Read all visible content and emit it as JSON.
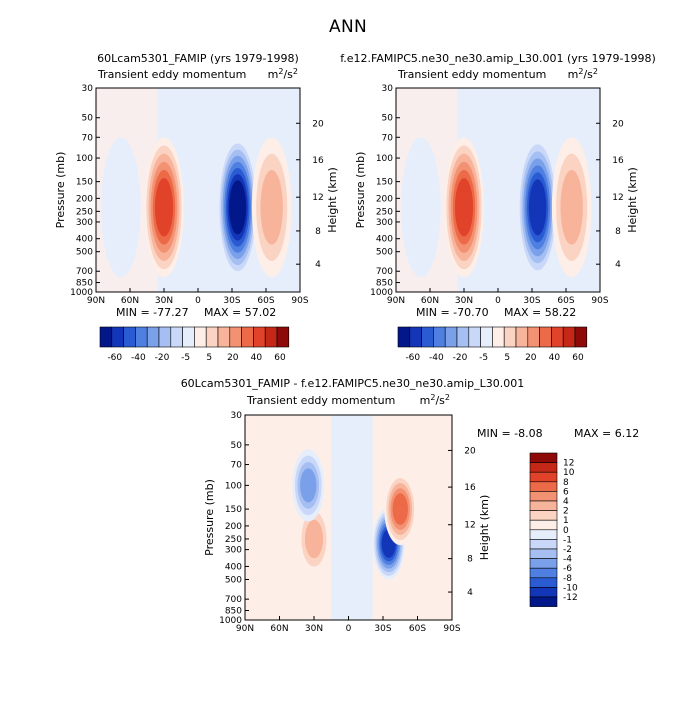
{
  "page_title": "ANN",
  "chart_data": [
    {
      "type": "heatmap",
      "title": "60Lcam5301_FAMIP (yrs 1979-1998)",
      "subtitle": "Transient eddy momentum",
      "units": "m2/s2",
      "xlabel": "",
      "ylabel": "Pressure (mb)",
      "ylabel_right": "Height (km)",
      "x_ticks": [
        "90N",
        "60N",
        "30N",
        "0",
        "30S",
        "60S",
        "90S"
      ],
      "y_ticks": [
        "30",
        "50",
        "70",
        "100",
        "150",
        "200",
        "250",
        "300",
        "400",
        "500",
        "700",
        "850",
        "1000"
      ],
      "y_right_ticks": [
        "20",
        "16",
        "12",
        "8",
        "4"
      ],
      "y_scale": "log",
      "min_label": "MIN = -77.27",
      "max_label": "MAX = 57.02",
      "colorbar": [
        "-60",
        "-40",
        "-20",
        "-5",
        "5",
        "20",
        "40",
        "60"
      ],
      "features": [
        {
          "lat": 30,
          "p": 250,
          "value": 57
        },
        {
          "lat": -35,
          "p": 250,
          "value": -77
        },
        {
          "lat": -65,
          "p": 250,
          "value": 25
        },
        {
          "lat": 68,
          "p": 250,
          "value": -10
        }
      ]
    },
    {
      "type": "heatmap",
      "title": "f.e12.FAMIPC5.ne30_ne30.amip_L30.001 (yrs 1979-1998)",
      "subtitle": "Transient eddy momentum",
      "units": "m2/s2",
      "xlabel": "",
      "ylabel": "Pressure (mb)",
      "ylabel_right": "Height (km)",
      "x_ticks": [
        "90N",
        "60N",
        "30N",
        "0",
        "30S",
        "60S",
        "90S"
      ],
      "y_ticks": [
        "30",
        "50",
        "70",
        "100",
        "150",
        "200",
        "250",
        "300",
        "400",
        "500",
        "700",
        "850",
        "1000"
      ],
      "y_right_ticks": [
        "20",
        "16",
        "12",
        "8",
        "4"
      ],
      "y_scale": "log",
      "min_label": "MIN = -70.70",
      "max_label": "MAX = 58.22",
      "colorbar": [
        "-60",
        "-40",
        "-20",
        "-5",
        "5",
        "20",
        "40",
        "60"
      ],
      "features": [
        {
          "lat": 30,
          "p": 250,
          "value": 58
        },
        {
          "lat": -35,
          "p": 250,
          "value": -71
        },
        {
          "lat": -65,
          "p": 250,
          "value": 28
        },
        {
          "lat": 68,
          "p": 250,
          "value": -12
        }
      ]
    },
    {
      "type": "heatmap",
      "title": "60Lcam5301_FAMIP - f.e12.FAMIPC5.ne30_ne30.amip_L30.001",
      "subtitle": "Transient eddy momentum",
      "units": "m2/s2",
      "xlabel": "",
      "ylabel": "Pressure (mb)",
      "ylabel_right": "Height (km)",
      "x_ticks": [
        "90N",
        "60N",
        "30N",
        "0",
        "30S",
        "60S",
        "90S"
      ],
      "y_ticks": [
        "30",
        "50",
        "70",
        "100",
        "150",
        "200",
        "250",
        "300",
        "400",
        "500",
        "700",
        "850",
        "1000"
      ],
      "y_right_ticks": [
        "20",
        "16",
        "12",
        "8",
        "4"
      ],
      "y_scale": "log",
      "min_label": "MIN = -8.08",
      "max_label": "MAX = 6.12",
      "colorbar": [
        "12",
        "10",
        "8",
        "6",
        "4",
        "2",
        "1",
        "0",
        "-1",
        "-2",
        "-4",
        "-6",
        "-8",
        "-10",
        "-12"
      ],
      "features": [
        {
          "lat": -35,
          "p": 270,
          "value": -8
        },
        {
          "lat": -45,
          "p": 150,
          "value": 6
        },
        {
          "lat": 30,
          "p": 250,
          "value": 3
        },
        {
          "lat": 35,
          "p": 100,
          "value": -4
        }
      ]
    }
  ],
  "colors": {
    "pos": [
      "#fdeee8",
      "#fbd3c2",
      "#f8b39b",
      "#f39273",
      "#ec6a48",
      "#e0432a",
      "#c62818",
      "#8e0a08"
    ],
    "neg": [
      "#e6eefc",
      "#c9d8f8",
      "#a6bff2",
      "#7ba0ea",
      "#4f7fe0",
      "#2a5bd2",
      "#1336b8",
      "#02188a"
    ],
    "diff_cb": [
      "#8e0a08",
      "#c62818",
      "#e0432a",
      "#ec6a48",
      "#f39273",
      "#f8b39b",
      "#fbd3c2",
      "#fdeee8",
      "#e6eefc",
      "#c9d8f8",
      "#a6bff2",
      "#7ba0ea",
      "#4f7fe0",
      "#2a5bd2",
      "#1336b8",
      "#02188a"
    ]
  }
}
